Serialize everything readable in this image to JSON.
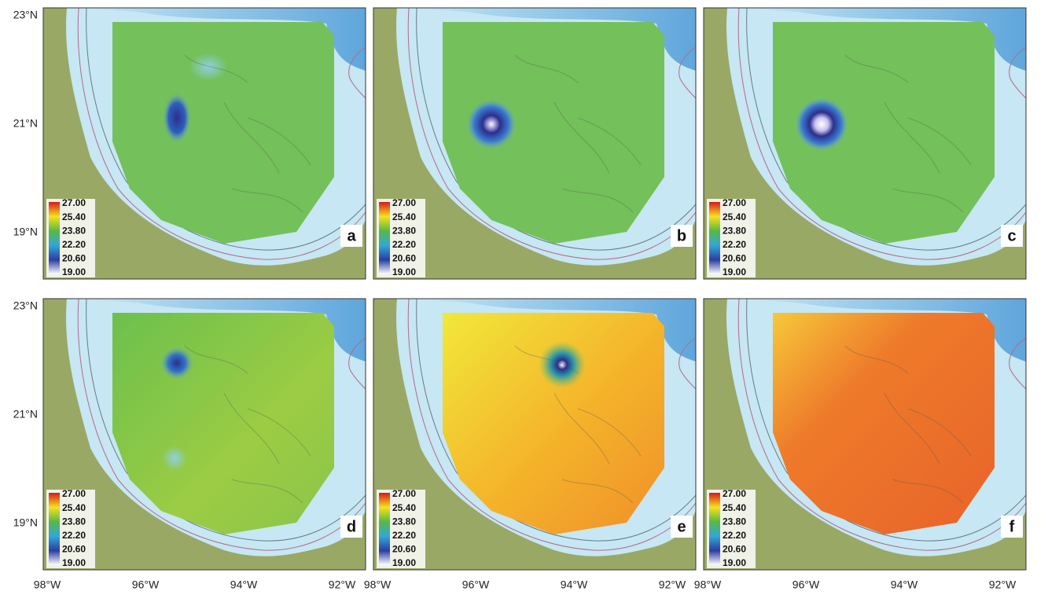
{
  "latitude_labels": [
    "23°N",
    "21°N",
    "19°N"
  ],
  "longitude_labels": [
    "98°W",
    "96°W",
    "94°W",
    "92°W"
  ],
  "legend_labels": [
    "27.00",
    "25.40",
    "23.80",
    "22.20",
    "20.60",
    "19.00"
  ],
  "panels": [
    {
      "label": "a"
    },
    {
      "label": "b"
    },
    {
      "label": "c"
    },
    {
      "label": "d"
    },
    {
      "label": "e"
    },
    {
      "label": "f"
    }
  ]
}
